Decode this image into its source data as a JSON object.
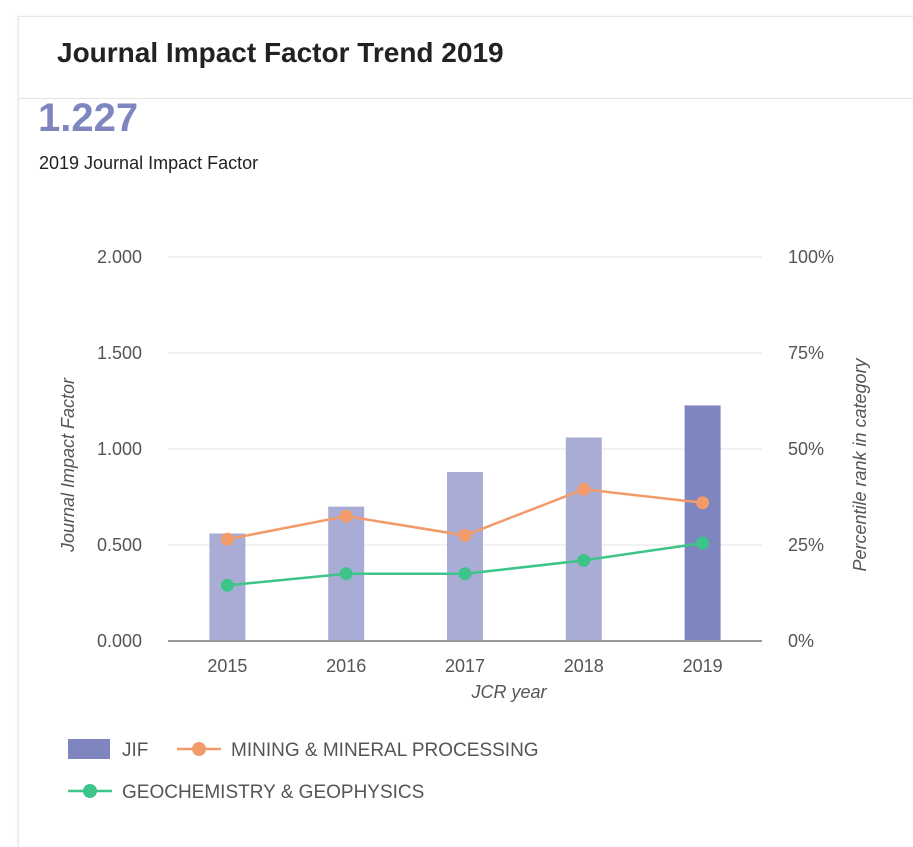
{
  "header": {
    "title": "Journal Impact Factor Trend 2019"
  },
  "metric": {
    "value": "1.227",
    "label": "2019 Journal Impact Factor"
  },
  "colors": {
    "bar": "#a9add6",
    "bar_highlight": "#7f86bf",
    "mining": "#f39a6a",
    "geochem": "#3dc48a",
    "grid": "#e4e4e4",
    "axis": "#999999"
  },
  "legend": {
    "jif": "JIF",
    "mining": "MINING & MINERAL PROCESSING",
    "geochem": "GEOCHEMISTRY & GEOPHYSICS"
  },
  "chart_data": {
    "type": "bar",
    "title": "Journal Impact Factor Trend 2019",
    "xlabel": "JCR year",
    "ylabel": "Journal Impact Factor",
    "y2label": "Percentile rank in category",
    "categories": [
      "2015",
      "2016",
      "2017",
      "2018",
      "2019"
    ],
    "ylim": [
      0,
      2
    ],
    "y2lim": [
      0,
      100
    ],
    "yticks": [
      "0.000",
      "0.500",
      "1.000",
      "1.500",
      "2.000"
    ],
    "y2ticks": [
      "0%",
      "25%",
      "50%",
      "75%",
      "100%"
    ],
    "highlight_category": "2019",
    "bars": {
      "name": "JIF",
      "values": [
        0.56,
        0.7,
        0.88,
        1.06,
        1.227
      ]
    },
    "series": [
      {
        "name": "MINING & MINERAL PROCESSING",
        "axis": "right",
        "values": [
          26.5,
          32.5,
          27.5,
          39.5,
          36
        ]
      },
      {
        "name": "GEOCHEMISTRY & GEOPHYSICS",
        "axis": "right",
        "values": [
          14.5,
          17.5,
          17.5,
          21,
          25.5
        ]
      }
    ],
    "grid": true,
    "legend_position": "bottom"
  }
}
